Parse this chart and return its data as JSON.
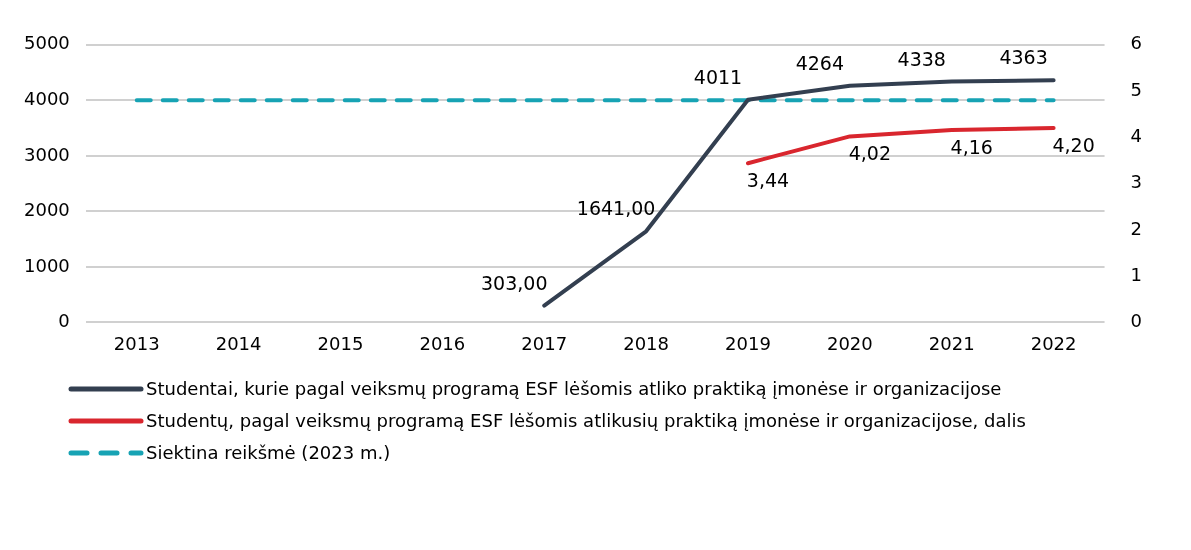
{
  "chart_data": {
    "type": "line",
    "categories": [
      "2013",
      "2014",
      "2015",
      "2016",
      "2017",
      "2018",
      "2019",
      "2020",
      "2021",
      "2022"
    ],
    "ylim": [
      0,
      5000
    ],
    "yticks": [
      0,
      1000,
      2000,
      3000,
      4000,
      5000
    ],
    "y2lim": [
      0,
      6
    ],
    "y2ticks": [
      0,
      1,
      2,
      3,
      4,
      5,
      6
    ],
    "grid": "y",
    "legend": "bottom",
    "marker": "none",
    "series": [
      {
        "name": "Studentai, kurie pagal veiksmų programą ESF lėšomis atliko praktiką įmonėse ir organizacijose",
        "color": "#333f50",
        "values": [
          null,
          null,
          null,
          null,
          303,
          1641,
          4011,
          4264,
          4338,
          4363
        ],
        "value_labels": [
          null,
          null,
          null,
          null,
          "303,00",
          "1641,00",
          "4011",
          "4264",
          "4338",
          "4363"
        ]
      },
      {
        "name": "Studentų, pagal veiksmų programą ESF lėšomis atlikusių praktiką įmonėse ir organizacijose, dalis",
        "color": "#d9262e",
        "axis": "y2",
        "values": [
          null,
          null,
          null,
          null,
          null,
          null,
          3.44,
          4.02,
          4.16,
          4.2
        ],
        "value_labels": [
          null,
          null,
          null,
          null,
          null,
          null,
          "3,44",
          "4,02",
          "4,16",
          "4,20"
        ]
      },
      {
        "name": "Siektina reikšmė (2023 m.)",
        "color": "#17a3b4",
        "line_style": "dashed",
        "values": [
          4000,
          4000,
          4000,
          4000,
          4000,
          4000,
          4000,
          4000,
          4000,
          4000
        ]
      }
    ]
  }
}
